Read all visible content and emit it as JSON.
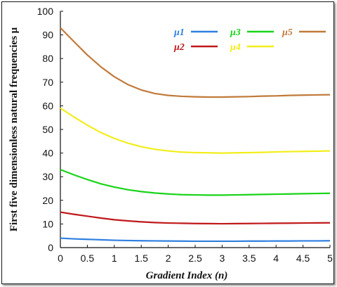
{
  "chart_data": {
    "type": "line",
    "xlabel": "Gradient Index (n)",
    "ylabel": "First five dimensionless natural frequencies μ",
    "xlim": [
      0,
      5
    ],
    "ylim": [
      0,
      100
    ],
    "x_ticks": [
      "0",
      "0.5",
      "1",
      "1.5",
      "2",
      "2.5",
      "3",
      "3.5",
      "4",
      "4.5",
      "5"
    ],
    "y_ticks": [
      "0",
      "10",
      "20",
      "30",
      "40",
      "50",
      "60",
      "70",
      "80",
      "90",
      "100"
    ],
    "grid": false,
    "legend_position": "top-right",
    "x": [
      0,
      0.25,
      0.5,
      0.75,
      1,
      1.25,
      1.5,
      1.75,
      2,
      2.25,
      2.5,
      2.75,
      3,
      3.25,
      3.5,
      3.75,
      4,
      4.25,
      4.5,
      4.75,
      5
    ],
    "series": [
      {
        "name": "μ1",
        "color": "#2f7fe0",
        "values": [
          4.0,
          3.7,
          3.5,
          3.3,
          3.1,
          3.0,
          2.9,
          2.85,
          2.8,
          2.75,
          2.7,
          2.7,
          2.7,
          2.7,
          2.75,
          2.75,
          2.8,
          2.8,
          2.85,
          2.85,
          2.9
        ]
      },
      {
        "name": "μ2",
        "color": "#c0191c",
        "values": [
          15.0,
          14.1,
          13.3,
          12.5,
          11.8,
          11.3,
          10.9,
          10.6,
          10.4,
          10.3,
          10.2,
          10.15,
          10.1,
          10.15,
          10.2,
          10.25,
          10.3,
          10.35,
          10.4,
          10.45,
          10.5
        ]
      },
      {
        "name": "μ3",
        "color": "#19d419",
        "values": [
          33.0,
          30.8,
          28.8,
          27.0,
          25.6,
          24.5,
          23.7,
          23.1,
          22.7,
          22.4,
          22.3,
          22.2,
          22.2,
          22.3,
          22.4,
          22.5,
          22.6,
          22.7,
          22.8,
          22.9,
          23.0
        ]
      },
      {
        "name": "μ4",
        "color": "#f2ee1a",
        "values": [
          59.0,
          55.3,
          51.8,
          48.7,
          46.2,
          44.2,
          42.7,
          41.6,
          40.9,
          40.4,
          40.2,
          40.1,
          40.0,
          40.1,
          40.2,
          40.3,
          40.5,
          40.6,
          40.7,
          40.8,
          40.9
        ]
      },
      {
        "name": "μ5",
        "color": "#c07a3a",
        "values": [
          93.0,
          87.2,
          81.5,
          76.5,
          72.3,
          69.0,
          66.7,
          65.2,
          64.4,
          64.0,
          63.8,
          63.7,
          63.7,
          63.8,
          63.9,
          64.1,
          64.2,
          64.4,
          64.5,
          64.6,
          64.7
        ]
      }
    ],
    "legend_layout": [
      [
        "μ1",
        "μ3",
        "μ5"
      ],
      [
        "μ2",
        "μ4"
      ]
    ]
  }
}
